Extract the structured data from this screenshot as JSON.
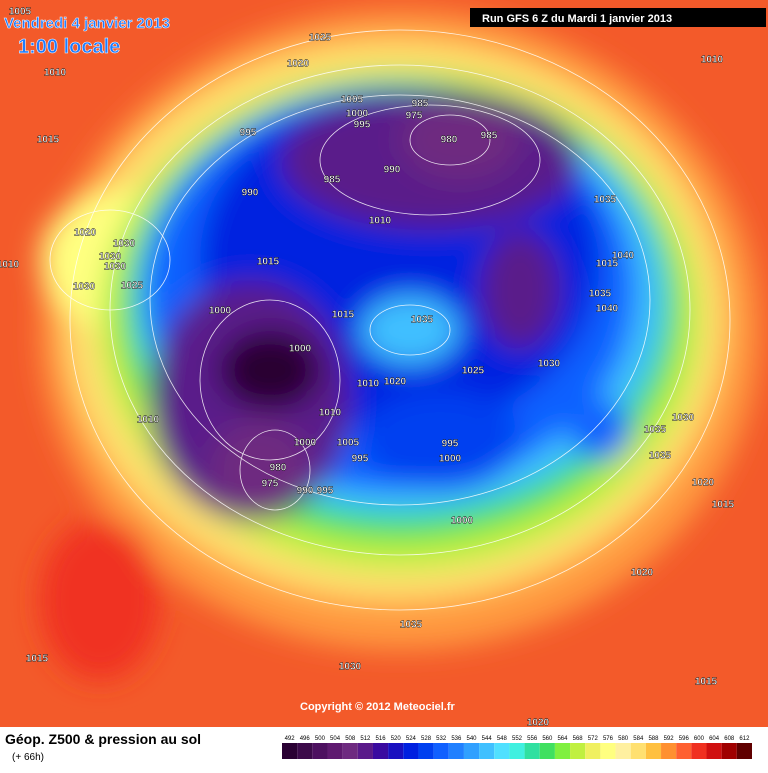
{
  "header": {
    "date": "Vendredi 4 janvier 2013",
    "time": "1:00 locale",
    "run": "Run GFS 6 Z du Mardi 1 janvier 2013"
  },
  "copyright": "Copyright © 2012 Meteociel.fr",
  "footer": {
    "title": "Géop. Z500 & pression au sol",
    "lead_time": "(+ 66h)"
  },
  "isobar_labels": [
    1005,
    1025,
    1010,
    1020,
    1010,
    1015,
    1005,
    1000,
    995,
    985,
    975,
    995,
    980,
    985,
    985,
    990,
    990,
    1010,
    1035,
    1020,
    1030,
    1030,
    1030,
    1040,
    1015,
    1015,
    1010,
    1030,
    1025,
    1035,
    1040,
    1000,
    1015,
    1035,
    1000,
    1030,
    1025,
    1010,
    1020,
    1010,
    1010,
    1030,
    1035,
    1000,
    1005,
    995,
    1000,
    995,
    1035,
    980,
    975,
    995,
    990,
    1020,
    1015,
    1000,
    1020,
    1035,
    1015,
    1030,
    1015,
    1020
  ],
  "legend": {
    "values": [
      492,
      496,
      500,
      504,
      508,
      512,
      516,
      520,
      524,
      528,
      532,
      536,
      540,
      544,
      548,
      552,
      556,
      560,
      564,
      568,
      572,
      576,
      580,
      584,
      588,
      592,
      596,
      600,
      604,
      608,
      612
    ],
    "colors": [
      "#2a0033",
      "#3c0a4a",
      "#4d1060",
      "#5f1a70",
      "#6e2a80",
      "#5a1a8a",
      "#3a0aa0",
      "#1a10c0",
      "#0020e0",
      "#0040f0",
      "#1060ff",
      "#2080ff",
      "#30a0ff",
      "#40c0ff",
      "#50e0ff",
      "#40f0e0",
      "#30e0a0",
      "#40e060",
      "#80f040",
      "#c0f040",
      "#f0f060",
      "#ffff80",
      "#fff0a0",
      "#ffe070",
      "#ffc040",
      "#ff9030",
      "#ff6030",
      "#f03020",
      "#d01010",
      "#a00000",
      "#600000"
    ]
  }
}
